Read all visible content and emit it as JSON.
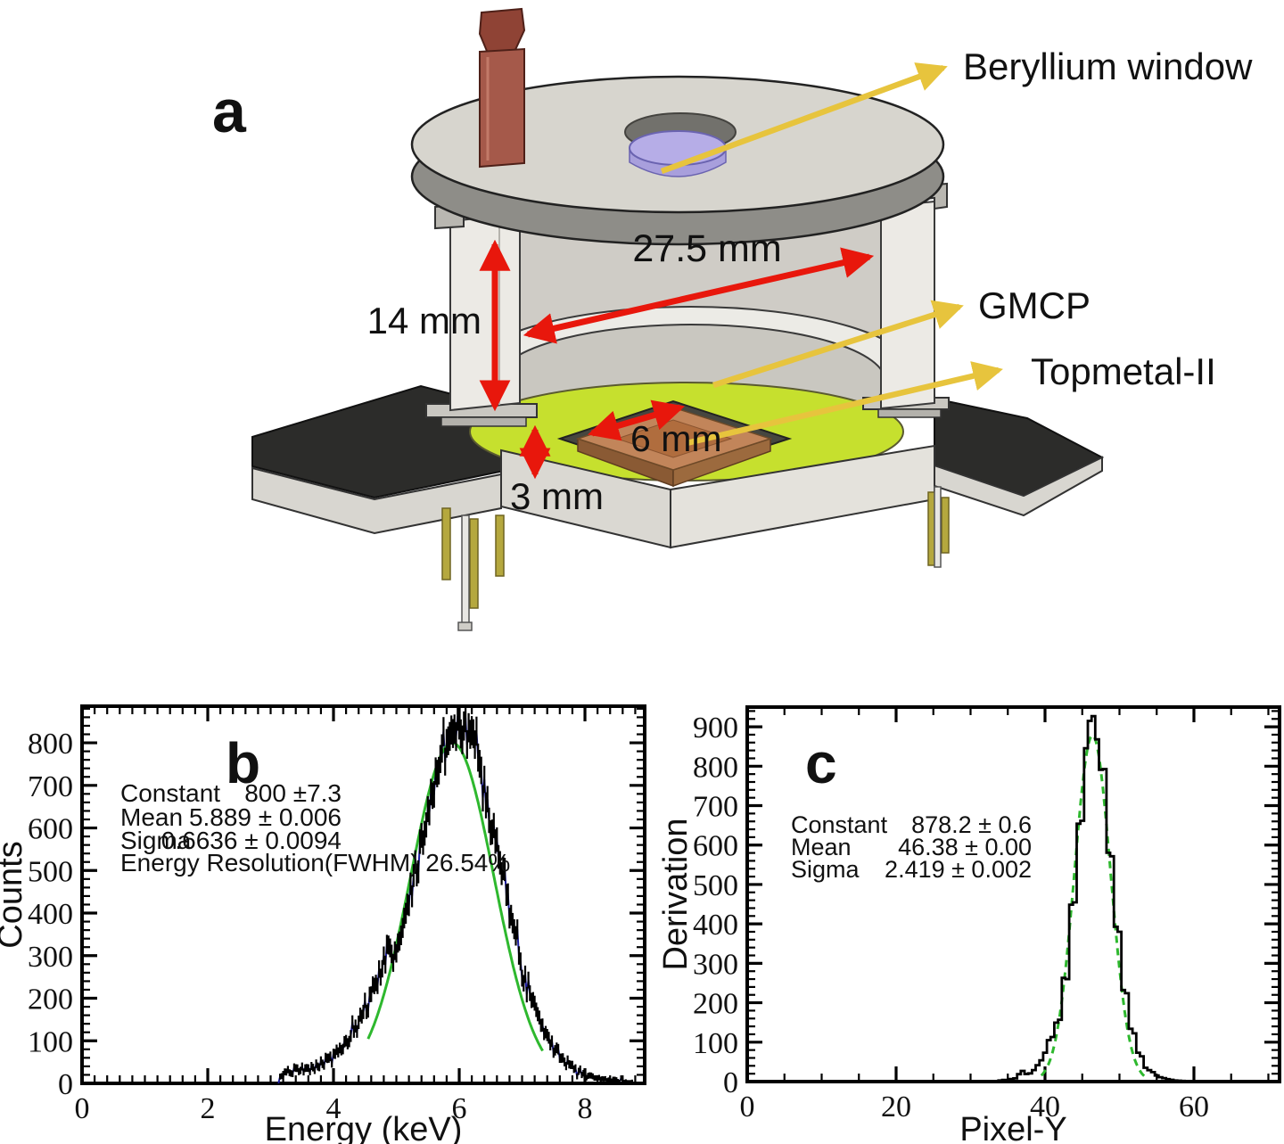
{
  "figure": {
    "panel_a": {
      "panel_letter": "a",
      "labels": {
        "beryllium": "Beryllium window",
        "gmcp": "GMCP",
        "topmetal": "Topmetal-II"
      },
      "dimensions": {
        "diameter": "27.5 mm",
        "height": "14 mm",
        "chip": "6 mm",
        "gap": "3 mm"
      },
      "colors": {
        "red_arrow": "#e8170c",
        "yellow_arrow": "#e7c43d",
        "pcb_green": "#c6e02e",
        "chip_copper": "#c2855a",
        "window_purple": "#b6ade7",
        "pipe_brown": "#a5594a",
        "base_dark": "#2c2c2a",
        "metal_light": "#d7d5ce",
        "metal_mid": "#8e8d88"
      }
    }
  },
  "chart_data": [
    {
      "panel": "b",
      "type": "bar",
      "subtype": "histogram-with-errorbars",
      "title": "",
      "xlabel": "Energy (keV)",
      "ylabel": "Counts",
      "xlim": [
        0,
        8.95
      ],
      "ylim": [
        0,
        886
      ],
      "x_major": 2,
      "x_minor": 0.2,
      "x_label_max": 8,
      "y_major": 100,
      "y_minor": 20,
      "y_label_max": 800,
      "bin_width": 0.025,
      "noise": 0.9,
      "style": "line+errorbars",
      "grid": false,
      "hist_color": "#1c1ca0",
      "errorbar_color": "#000000",
      "fit_color": "#2eb82e",
      "fit": {
        "type": "gaussian",
        "constant": 800,
        "mean": 5.889,
        "sigma": 0.6636,
        "range": [
          4.55,
          7.35
        ],
        "dashed": false
      },
      "stats": [
        {
          "label": "Constant",
          "value": "800 ±7.3"
        },
        {
          "label": "Mean",
          "value": "5.889 ± 0.006"
        },
        {
          "label": "Sigma",
          "value": "0.6636 ± 0.0094"
        }
      ],
      "stats_extra": "Energy Resolution(FWHM) 26.54%",
      "profile": [
        [
          3.125,
          0
        ],
        [
          3.2,
          26
        ],
        [
          3.35,
          30
        ],
        [
          3.5,
          30
        ],
        [
          3.65,
          34
        ],
        [
          3.8,
          45
        ],
        [
          3.95,
          58
        ],
        [
          4.1,
          78
        ],
        [
          4.25,
          105
        ],
        [
          4.4,
          135
        ],
        [
          4.55,
          190
        ],
        [
          4.7,
          250
        ],
        [
          4.8,
          300
        ],
        [
          4.9,
          295
        ],
        [
          5.0,
          320
        ],
        [
          5.1,
          370
        ],
        [
          5.25,
          460
        ],
        [
          5.4,
          560
        ],
        [
          5.55,
          670
        ],
        [
          5.7,
          760
        ],
        [
          5.85,
          830
        ],
        [
          5.95,
          845
        ],
        [
          6.05,
          830
        ],
        [
          6.15,
          840
        ],
        [
          6.25,
          795
        ],
        [
          6.4,
          710
        ],
        [
          6.55,
          600
        ],
        [
          6.7,
          480
        ],
        [
          6.85,
          370
        ],
        [
          7.0,
          275
        ],
        [
          7.15,
          200
        ],
        [
          7.3,
          150
        ],
        [
          7.45,
          100
        ],
        [
          7.6,
          65
        ],
        [
          7.75,
          45
        ],
        [
          7.9,
          30
        ],
        [
          8.05,
          20
        ],
        [
          8.2,
          13
        ],
        [
          8.35,
          9
        ],
        [
          8.5,
          6
        ],
        [
          8.65,
          5
        ],
        [
          8.75,
          4
        ]
      ]
    },
    {
      "panel": "c",
      "type": "bar",
      "subtype": "step-histogram",
      "title": "",
      "xlabel": "Pixel-Y",
      "ylabel": "Derivation",
      "xlim": [
        0,
        71.5
      ],
      "ylim": [
        0,
        950
      ],
      "x_major": 20,
      "x_minor": 5,
      "x_label_max": 60,
      "y_major": 100,
      "y_minor": 20,
      "y_label_max": 900,
      "bin_width": 0.5,
      "noise": 0.22,
      "style": "steps",
      "grid": false,
      "hist_color": "#000000",
      "fit_color": "#2eb82e",
      "fit": {
        "type": "gaussian",
        "constant": 878.2,
        "mean": 46.38,
        "sigma": 2.419,
        "range": [
          39.5,
          53.5
        ],
        "dashed": true
      },
      "stats": [
        {
          "label": "Constant",
          "value": "878.2 ± 0.6"
        },
        {
          "label": "Mean",
          "value": "46.38 ± 0.00"
        },
        {
          "label": "Sigma",
          "value": "2.419 ± 0.002"
        }
      ],
      "stats_extra": "",
      "profile": [
        [
          28,
          0
        ],
        [
          33,
          0
        ],
        [
          34,
          2
        ],
        [
          35,
          4
        ],
        [
          36,
          8
        ],
        [
          36.5,
          18
        ],
        [
          37,
          28
        ],
        [
          37.5,
          20
        ],
        [
          38,
          22
        ],
        [
          38.5,
          30
        ],
        [
          39,
          40
        ],
        [
          39.5,
          55
        ],
        [
          40,
          75
        ],
        [
          40.5,
          100
        ],
        [
          41,
          110
        ],
        [
          41.5,
          150
        ],
        [
          42,
          160
        ],
        [
          42.5,
          265
        ],
        [
          43,
          270
        ],
        [
          43.5,
          445
        ],
        [
          44,
          450
        ],
        [
          44.5,
          655
        ],
        [
          45,
          660
        ],
        [
          45.5,
          845
        ],
        [
          46,
          905
        ],
        [
          46.5,
          918
        ],
        [
          47,
          868
        ],
        [
          47.5,
          800
        ],
        [
          48,
          790
        ],
        [
          48.5,
          580
        ],
        [
          49,
          575
        ],
        [
          49.5,
          390
        ],
        [
          50,
          385
        ],
        [
          50.5,
          230
        ],
        [
          51,
          225
        ],
        [
          51.5,
          132
        ],
        [
          52,
          122
        ],
        [
          52.5,
          72
        ],
        [
          53,
          66
        ],
        [
          53.5,
          36
        ],
        [
          54,
          30
        ],
        [
          54.5,
          22
        ],
        [
          55,
          15
        ],
        [
          55.5,
          11
        ],
        [
          56,
          8
        ],
        [
          56.5,
          6
        ],
        [
          57,
          4
        ],
        [
          58,
          2
        ],
        [
          59,
          1
        ],
        [
          60,
          1
        ],
        [
          62,
          0
        ],
        [
          71,
          0
        ]
      ]
    }
  ]
}
